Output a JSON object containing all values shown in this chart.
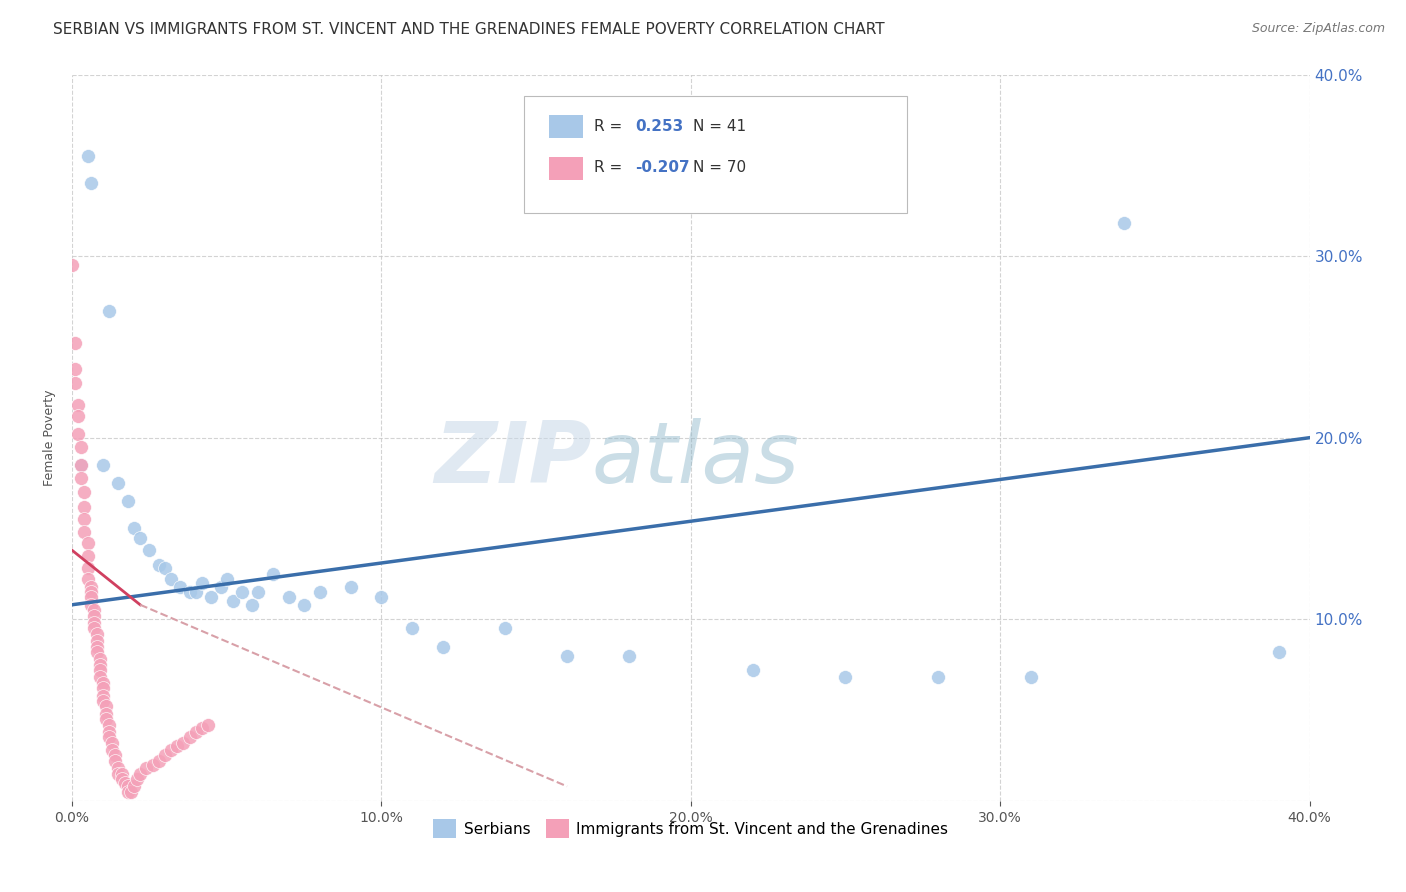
{
  "title": "SERBIAN VS IMMIGRANTS FROM ST. VINCENT AND THE GRENADINES FEMALE POVERTY CORRELATION CHART",
  "source": "Source: ZipAtlas.com",
  "ylabel": "Female Poverty",
  "xmin": 0.0,
  "xmax": 0.4,
  "ymin": 0.0,
  "ymax": 0.4,
  "background_color": "#ffffff",
  "grid_color": "#c8c8c8",
  "legend_r_blue": "0.253",
  "legend_n_blue": "41",
  "legend_r_pink": "-0.207",
  "legend_n_pink": "70",
  "blue_color": "#a8c8e8",
  "pink_color": "#f4a0b8",
  "blue_line_color": "#3a6eaa",
  "pink_line_color": "#d04060",
  "pink_dash_color": "#d8a0a8",
  "blue_scatter": [
    [
      0.003,
      0.185
    ],
    [
      0.005,
      0.355
    ],
    [
      0.006,
      0.34
    ],
    [
      0.01,
      0.185
    ],
    [
      0.012,
      0.27
    ],
    [
      0.015,
      0.175
    ],
    [
      0.018,
      0.165
    ],
    [
      0.02,
      0.15
    ],
    [
      0.022,
      0.145
    ],
    [
      0.025,
      0.138
    ],
    [
      0.028,
      0.13
    ],
    [
      0.03,
      0.128
    ],
    [
      0.032,
      0.122
    ],
    [
      0.035,
      0.118
    ],
    [
      0.038,
      0.115
    ],
    [
      0.04,
      0.115
    ],
    [
      0.042,
      0.12
    ],
    [
      0.045,
      0.112
    ],
    [
      0.048,
      0.118
    ],
    [
      0.05,
      0.122
    ],
    [
      0.052,
      0.11
    ],
    [
      0.055,
      0.115
    ],
    [
      0.058,
      0.108
    ],
    [
      0.06,
      0.115
    ],
    [
      0.065,
      0.125
    ],
    [
      0.07,
      0.112
    ],
    [
      0.075,
      0.108
    ],
    [
      0.08,
      0.115
    ],
    [
      0.09,
      0.118
    ],
    [
      0.1,
      0.112
    ],
    [
      0.11,
      0.095
    ],
    [
      0.12,
      0.085
    ],
    [
      0.14,
      0.095
    ],
    [
      0.16,
      0.08
    ],
    [
      0.18,
      0.08
    ],
    [
      0.22,
      0.072
    ],
    [
      0.25,
      0.068
    ],
    [
      0.28,
      0.068
    ],
    [
      0.31,
      0.068
    ],
    [
      0.34,
      0.318
    ],
    [
      0.39,
      0.082
    ]
  ],
  "pink_scatter": [
    [
      0.0,
      0.295
    ],
    [
      0.001,
      0.252
    ],
    [
      0.001,
      0.238
    ],
    [
      0.001,
      0.23
    ],
    [
      0.002,
      0.218
    ],
    [
      0.002,
      0.212
    ],
    [
      0.002,
      0.202
    ],
    [
      0.003,
      0.195
    ],
    [
      0.003,
      0.185
    ],
    [
      0.003,
      0.178
    ],
    [
      0.004,
      0.17
    ],
    [
      0.004,
      0.162
    ],
    [
      0.004,
      0.155
    ],
    [
      0.004,
      0.148
    ],
    [
      0.005,
      0.142
    ],
    [
      0.005,
      0.135
    ],
    [
      0.005,
      0.128
    ],
    [
      0.005,
      0.122
    ],
    [
      0.006,
      0.118
    ],
    [
      0.006,
      0.115
    ],
    [
      0.006,
      0.112
    ],
    [
      0.006,
      0.108
    ],
    [
      0.007,
      0.105
    ],
    [
      0.007,
      0.102
    ],
    [
      0.007,
      0.098
    ],
    [
      0.007,
      0.095
    ],
    [
      0.008,
      0.092
    ],
    [
      0.008,
      0.088
    ],
    [
      0.008,
      0.085
    ],
    [
      0.008,
      0.082
    ],
    [
      0.009,
      0.078
    ],
    [
      0.009,
      0.075
    ],
    [
      0.009,
      0.072
    ],
    [
      0.009,
      0.068
    ],
    [
      0.01,
      0.065
    ],
    [
      0.01,
      0.062
    ],
    [
      0.01,
      0.058
    ],
    [
      0.01,
      0.055
    ],
    [
      0.011,
      0.052
    ],
    [
      0.011,
      0.048
    ],
    [
      0.011,
      0.045
    ],
    [
      0.012,
      0.042
    ],
    [
      0.012,
      0.038
    ],
    [
      0.012,
      0.035
    ],
    [
      0.013,
      0.032
    ],
    [
      0.013,
      0.028
    ],
    [
      0.014,
      0.025
    ],
    [
      0.014,
      0.022
    ],
    [
      0.015,
      0.018
    ],
    [
      0.015,
      0.015
    ],
    [
      0.016,
      0.015
    ],
    [
      0.016,
      0.012
    ],
    [
      0.017,
      0.01
    ],
    [
      0.018,
      0.008
    ],
    [
      0.018,
      0.005
    ],
    [
      0.019,
      0.005
    ],
    [
      0.02,
      0.008
    ],
    [
      0.021,
      0.012
    ],
    [
      0.022,
      0.015
    ],
    [
      0.024,
      0.018
    ],
    [
      0.026,
      0.02
    ],
    [
      0.028,
      0.022
    ],
    [
      0.03,
      0.025
    ],
    [
      0.032,
      0.028
    ],
    [
      0.034,
      0.03
    ],
    [
      0.036,
      0.032
    ],
    [
      0.038,
      0.035
    ],
    [
      0.04,
      0.038
    ],
    [
      0.042,
      0.04
    ],
    [
      0.044,
      0.042
    ]
  ],
  "blue_trendline": [
    [
      0.0,
      0.108
    ],
    [
      0.4,
      0.2
    ]
  ],
  "pink_solid_trendline": [
    [
      0.0,
      0.138
    ],
    [
      0.022,
      0.108
    ]
  ],
  "pink_dash_trendline": [
    [
      0.022,
      0.108
    ],
    [
      0.16,
      0.008
    ]
  ],
  "legend_labels": [
    "Serbians",
    "Immigrants from St. Vincent and the Grenadines"
  ],
  "title_fontsize": 11,
  "axis_label_fontsize": 9,
  "tick_fontsize": 10,
  "right_tick_color": "#4472c4",
  "watermark_zip": "ZIP",
  "watermark_atlas": "atlas"
}
